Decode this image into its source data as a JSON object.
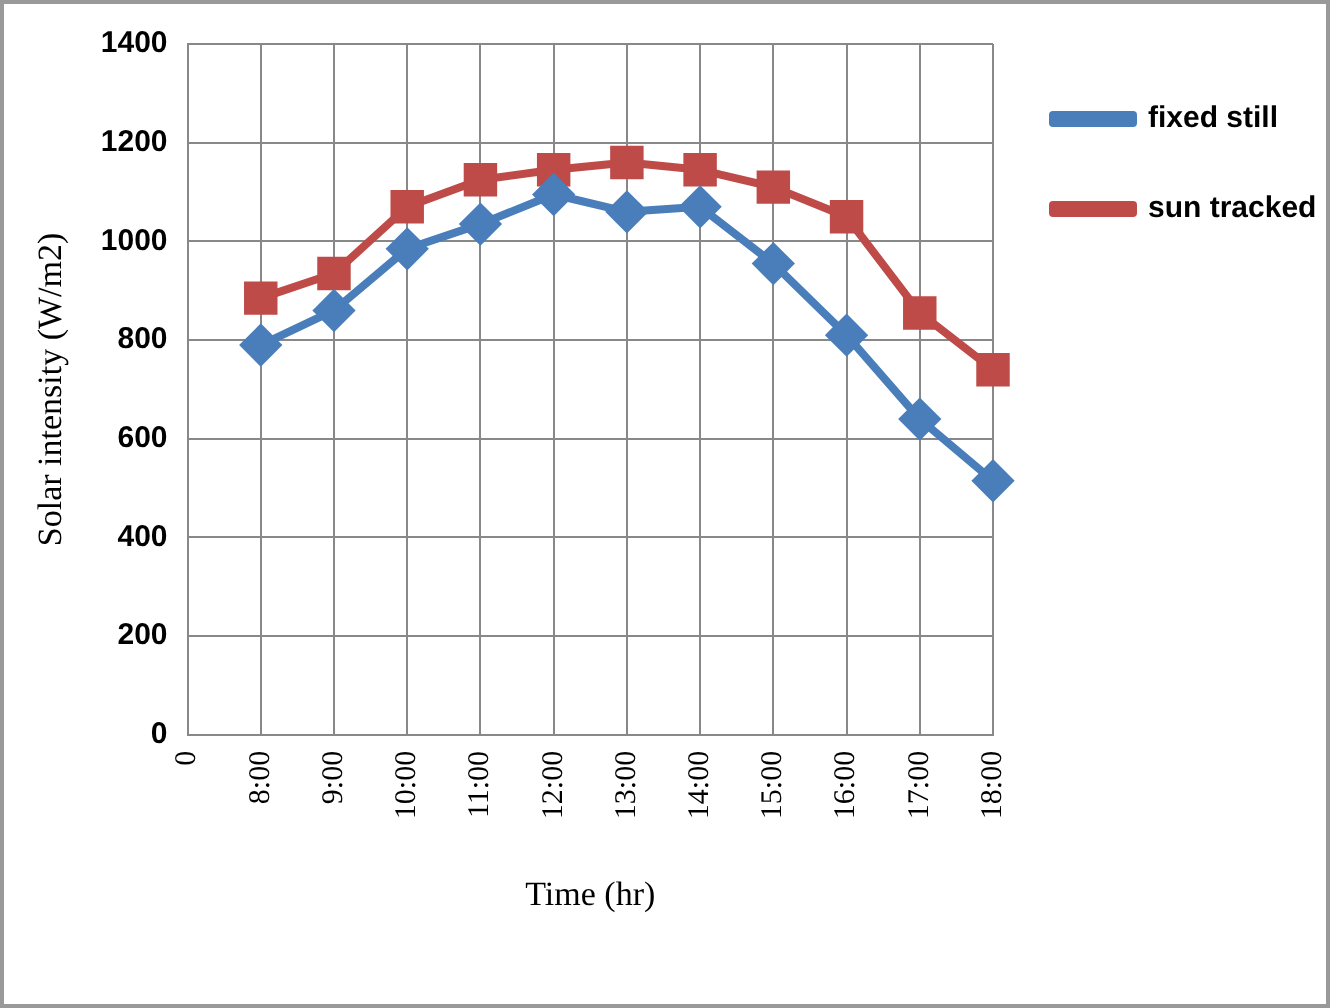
{
  "chart_data": {
    "type": "line",
    "xlabel": "Time (hr)",
    "ylabel": "Solar intensity (W/m2)",
    "categories": [
      "0",
      "8:00",
      "9:00",
      "10:00",
      "11:00",
      "12:00",
      "13:00",
      "14:00",
      "15:00",
      "16:00",
      "17:00",
      "18:00"
    ],
    "series": [
      {
        "name": "fixed still",
        "color": "#4a7ebb",
        "marker": "diamond",
        "values": [
          null,
          790,
          860,
          985,
          1035,
          1095,
          1060,
          1070,
          955,
          810,
          640,
          515
        ]
      },
      {
        "name": "sun tracked",
        "color": "#be4b48",
        "marker": "square",
        "values": [
          null,
          885,
          935,
          1070,
          1125,
          1145,
          1160,
          1145,
          1110,
          1050,
          855,
          740
        ]
      }
    ],
    "ylim": [
      0,
      1400
    ],
    "yticks": [
      0,
      200,
      400,
      600,
      800,
      1000,
      1200,
      1400
    ],
    "grid": true,
    "legend": "top right"
  }
}
